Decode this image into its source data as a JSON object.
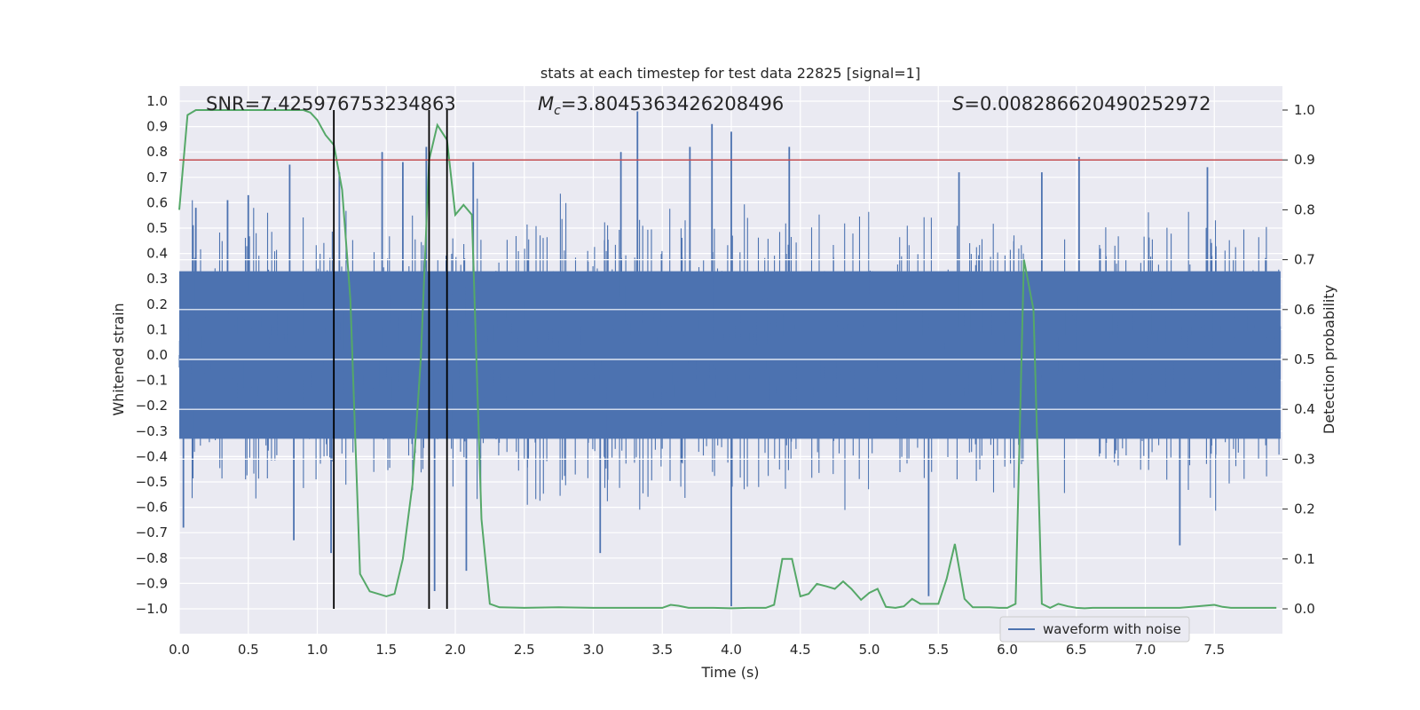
{
  "chart_data": {
    "type": "line",
    "title": "stats at each timestep for test data 22825 [signal=1]",
    "xlabel": "Time (s)",
    "ylabel": "Whitened strain",
    "y2label": "Detection probability",
    "xlim": [
      0.0,
      8.0
    ],
    "ylim": [
      -1.1,
      1.05
    ],
    "y2lim": [
      -0.05,
      1.04
    ],
    "xticks": [
      "0.0",
      "0.5",
      "1.0",
      "1.5",
      "2.0",
      "2.5",
      "3.0",
      "3.5",
      "4.0",
      "4.5",
      "5.0",
      "5.5",
      "6.0",
      "6.5",
      "7.0",
      "7.5"
    ],
    "xtick_values": [
      0.0,
      0.5,
      1.0,
      1.5,
      2.0,
      2.5,
      3.0,
      3.5,
      4.0,
      4.5,
      5.0,
      5.5,
      6.0,
      6.5,
      7.0,
      7.5
    ],
    "yticks": [
      "1.0",
      "0.9",
      "0.8",
      "0.7",
      "0.6",
      "0.5",
      "0.4",
      "0.3",
      "0.2",
      "0.1",
      "0.0",
      "−0.1",
      "−0.2",
      "−0.3",
      "−0.4",
      "−0.5",
      "−0.6",
      "−0.7",
      "−0.8",
      "−0.9",
      "−1.0"
    ],
    "ytick_values": [
      1.0,
      0.9,
      0.8,
      0.7,
      0.6,
      0.5,
      0.4,
      0.3,
      0.2,
      0.1,
      0.0,
      -0.1,
      -0.2,
      -0.3,
      -0.4,
      -0.5,
      -0.6,
      -0.7,
      -0.8,
      -0.9,
      -1.0
    ],
    "y2ticks": [
      "1.0",
      "0.9",
      "0.8",
      "0.7",
      "0.6",
      "0.5",
      "0.4",
      "0.3",
      "0.2",
      "0.1",
      "0.0"
    ],
    "y2tick_values": [
      1.0,
      0.9,
      0.8,
      0.7,
      0.6,
      0.5,
      0.4,
      0.3,
      0.2,
      0.1,
      0.0
    ],
    "grid": true,
    "annotations": {
      "snr": "SNR=7.425976753234863",
      "mc_symbol": "M",
      "mc_sub": "c",
      "mc_value": "=3.8045363426208496",
      "s_symbol": "S",
      "s_value": "=0.008286620490252972"
    },
    "legend": {
      "label": "waveform with noise",
      "placement": "lower-right"
    },
    "threshold_line": {
      "value": 0.9,
      "axis": "y2",
      "color": "#c44e52"
    },
    "vertical_lines": [
      1.12,
      1.81,
      1.94
    ],
    "series": [
      {
        "name": "waveform with noise",
        "axis": "y",
        "color": "#4c72b0",
        "noise_band": [
          -0.38,
          0.38
        ],
        "spikes": [
          {
            "t": 0.03,
            "v": -0.68
          },
          {
            "t": 0.12,
            "v": 0.58
          },
          {
            "t": 0.35,
            "v": 0.61
          },
          {
            "t": 0.5,
            "v": 0.63
          },
          {
            "t": 0.8,
            "v": 0.75
          },
          {
            "t": 0.83,
            "v": -0.73
          },
          {
            "t": 1.1,
            "v": -0.78
          },
          {
            "t": 1.16,
            "v": 0.72
          },
          {
            "t": 1.47,
            "v": 0.8
          },
          {
            "t": 1.62,
            "v": 0.76
          },
          {
            "t": 1.79,
            "v": 0.82
          },
          {
            "t": 1.85,
            "v": -0.93
          },
          {
            "t": 2.08,
            "v": -0.85
          },
          {
            "t": 2.13,
            "v": 0.76
          },
          {
            "t": 3.05,
            "v": -0.78
          },
          {
            "t": 3.2,
            "v": 0.8
          },
          {
            "t": 3.32,
            "v": 0.96
          },
          {
            "t": 3.7,
            "v": 0.82
          },
          {
            "t": 3.86,
            "v": 0.91
          },
          {
            "t": 4.0,
            "v": 0.88
          },
          {
            "t": 4.0,
            "v": -0.99
          },
          {
            "t": 4.42,
            "v": 0.82
          },
          {
            "t": 5.43,
            "v": -0.95
          },
          {
            "t": 5.65,
            "v": 0.72
          },
          {
            "t": 6.25,
            "v": 0.72
          },
          {
            "t": 6.52,
            "v": 0.78
          },
          {
            "t": 7.25,
            "v": -0.75
          },
          {
            "t": 7.45,
            "v": 0.74
          }
        ]
      },
      {
        "name": "detection probability",
        "axis": "y2",
        "color": "#55a868",
        "x": [
          0.0,
          0.06,
          0.12,
          0.2,
          0.3,
          0.4,
          0.5,
          0.6,
          0.7,
          0.8,
          0.85,
          0.9,
          0.95,
          1.0,
          1.06,
          1.12,
          1.18,
          1.24,
          1.31,
          1.38,
          1.44,
          1.5,
          1.56,
          1.62,
          1.69,
          1.75,
          1.81,
          1.87,
          1.94,
          2.0,
          2.06,
          2.12,
          2.19,
          2.25,
          2.32,
          2.5,
          2.75,
          3.0,
          3.25,
          3.5,
          3.56,
          3.62,
          3.69,
          3.75,
          3.87,
          4.0,
          4.12,
          4.25,
          4.31,
          4.37,
          4.44,
          4.5,
          4.56,
          4.62,
          4.69,
          4.75,
          4.81,
          4.87,
          4.94,
          5.0,
          5.06,
          5.12,
          5.19,
          5.25,
          5.31,
          5.37,
          5.44,
          5.5,
          5.56,
          5.62,
          5.69,
          5.75,
          5.81,
          5.87,
          5.94,
          6.0,
          6.06,
          6.12,
          6.19,
          6.25,
          6.31,
          6.37,
          6.44,
          6.5,
          6.56,
          6.62,
          6.75,
          7.0,
          7.25,
          7.5,
          7.56,
          7.62,
          7.75,
          7.95
        ],
        "values": [
          0.8,
          0.99,
          1.0,
          1.0,
          1.0,
          1.0,
          1.0,
          1.0,
          1.0,
          1.0,
          1.0,
          1.0,
          0.995,
          0.98,
          0.95,
          0.93,
          0.84,
          0.62,
          0.07,
          0.035,
          0.03,
          0.025,
          0.03,
          0.1,
          0.25,
          0.5,
          0.9,
          0.97,
          0.94,
          0.79,
          0.81,
          0.79,
          0.18,
          0.01,
          0.003,
          0.002,
          0.003,
          0.002,
          0.002,
          0.002,
          0.008,
          0.006,
          0.002,
          0.002,
          0.002,
          0.001,
          0.002,
          0.002,
          0.008,
          0.1,
          0.1,
          0.025,
          0.03,
          0.05,
          0.045,
          0.04,
          0.055,
          0.04,
          0.018,
          0.032,
          0.04,
          0.004,
          0.002,
          0.005,
          0.02,
          0.01,
          0.01,
          0.01,
          0.06,
          0.13,
          0.02,
          0.003,
          0.003,
          0.003,
          0.002,
          0.002,
          0.01,
          0.7,
          0.6,
          0.01,
          0.002,
          0.01,
          0.005,
          0.002,
          0.001,
          0.002,
          0.002,
          0.002,
          0.002,
          0.008,
          0.004,
          0.002,
          0.002,
          0.002
        ]
      }
    ]
  }
}
